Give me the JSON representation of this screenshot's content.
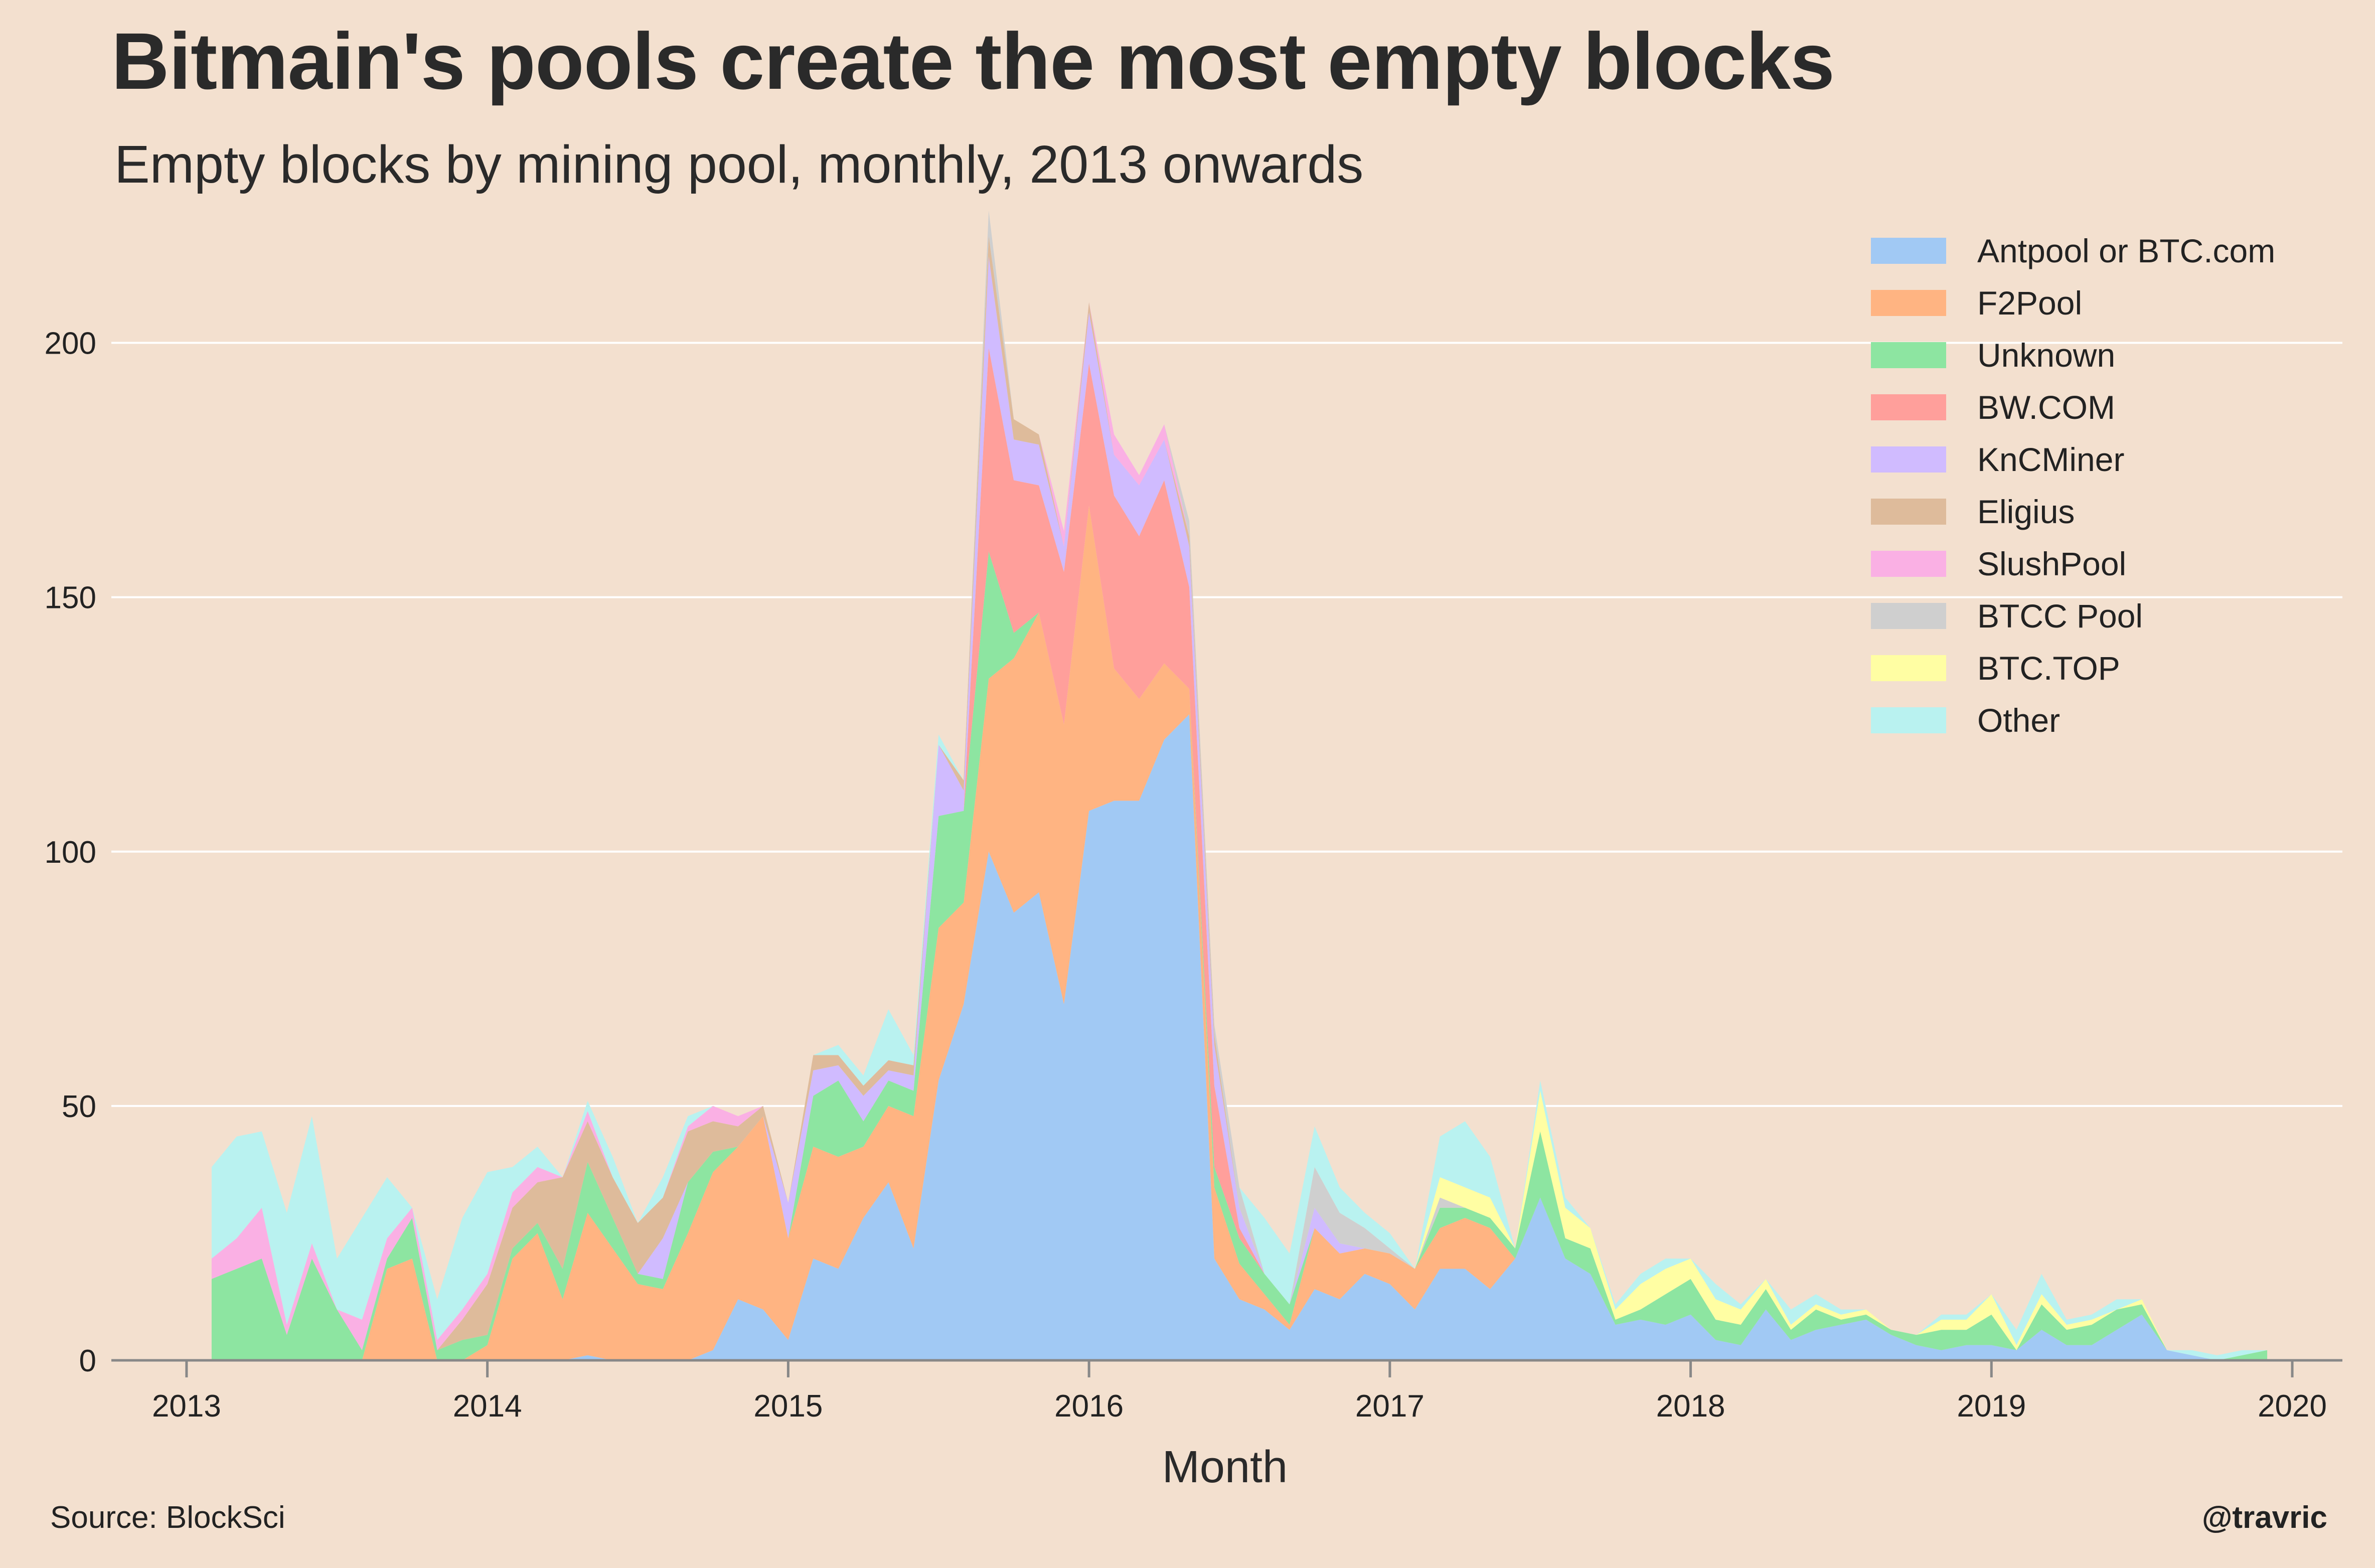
{
  "title": "Bitmain's pools create the most empty blocks",
  "subtitle": "Empty blocks by mining pool, monthly, 2013 onwards",
  "source": "Source: BlockSci",
  "credit": "@travric",
  "colors": {
    "background": "#f3e0cf",
    "grid": "#ffffff",
    "axis": "#888888"
  },
  "chart_data": {
    "type": "area",
    "stacked": true,
    "title": "Bitmain's pools create the most empty blocks",
    "subtitle": "Empty blocks by mining pool, monthly, 2013 onwards",
    "xlabel": "Month",
    "ylabel": "",
    "xlim": [
      "2012-10",
      "2020-03"
    ],
    "ylim": [
      0,
      225
    ],
    "x_ticks": [
      "2013",
      "2014",
      "2015",
      "2016",
      "2017",
      "2018",
      "2019",
      "2020"
    ],
    "y_ticks": [
      0,
      50,
      100,
      150,
      200
    ],
    "grid": "horizontal",
    "legend_position": "top-right",
    "x": [
      "2013-02",
      "2013-03",
      "2013-04",
      "2013-05",
      "2013-06",
      "2013-07",
      "2013-08",
      "2013-09",
      "2013-10",
      "2013-11",
      "2013-12",
      "2014-01",
      "2014-02",
      "2014-03",
      "2014-04",
      "2014-05",
      "2014-06",
      "2014-07",
      "2014-08",
      "2014-09",
      "2014-10",
      "2014-11",
      "2014-12",
      "2015-01",
      "2015-02",
      "2015-03",
      "2015-04",
      "2015-05",
      "2015-06",
      "2015-07",
      "2015-08",
      "2015-09",
      "2015-10",
      "2015-11",
      "2015-12",
      "2016-01",
      "2016-02",
      "2016-03",
      "2016-04",
      "2016-05",
      "2016-06",
      "2016-07",
      "2016-08",
      "2016-09",
      "2016-10",
      "2016-11",
      "2016-12",
      "2017-01",
      "2017-02",
      "2017-03",
      "2017-04",
      "2017-05",
      "2017-06",
      "2017-07",
      "2017-08",
      "2017-09",
      "2017-10",
      "2017-11",
      "2017-12",
      "2018-01",
      "2018-02",
      "2018-03",
      "2018-04",
      "2018-05",
      "2018-06",
      "2018-07",
      "2018-08",
      "2018-09",
      "2018-10",
      "2018-11",
      "2018-12",
      "2019-01",
      "2019-02",
      "2019-03",
      "2019-04",
      "2019-05",
      "2019-06",
      "2019-07",
      "2019-08",
      "2019-09",
      "2019-10",
      "2019-11",
      "2019-12"
    ],
    "series": [
      {
        "name": "Antpool or BTC.com",
        "color": "#a1c9f4",
        "values": [
          0,
          0,
          0,
          0,
          0,
          0,
          0,
          0,
          0,
          0,
          0,
          0,
          0,
          0,
          0,
          1,
          0,
          0,
          0,
          0,
          2,
          12,
          10,
          4,
          20,
          18,
          28,
          35,
          22,
          55,
          70,
          100,
          88,
          92,
          70,
          108,
          110,
          110,
          122,
          127,
          20,
          12,
          10,
          6,
          14,
          12,
          17,
          15,
          10,
          18,
          18,
          14,
          20,
          32,
          20,
          17,
          7,
          8,
          7,
          9,
          4,
          3,
          10,
          4,
          6,
          7,
          8,
          5,
          3,
          2,
          3,
          3,
          2,
          6,
          3,
          3,
          6,
          9,
          2,
          1,
          0,
          0,
          0
        ]
      },
      {
        "name": "F2Pool",
        "color": "#ffb482",
        "values": [
          0,
          0,
          0,
          0,
          0,
          0,
          0,
          18,
          20,
          0,
          0,
          3,
          20,
          25,
          12,
          28,
          22,
          15,
          14,
          25,
          35,
          30,
          38,
          20,
          22,
          22,
          14,
          15,
          26,
          30,
          20,
          34,
          50,
          55,
          55,
          60,
          26,
          20,
          15,
          5,
          14,
          7,
          3,
          1,
          12,
          9,
          5,
          6,
          8,
          8,
          10,
          12,
          0,
          0,
          0,
          0,
          0,
          0,
          0,
          0,
          0,
          0,
          0,
          0,
          0,
          0,
          0,
          0,
          0,
          0,
          0,
          0,
          0,
          0,
          0,
          0,
          0,
          0,
          0,
          0,
          0,
          0,
          0
        ]
      },
      {
        "name": "Unknown",
        "color": "#8de5a1",
        "values": [
          16,
          18,
          20,
          5,
          20,
          10,
          2,
          2,
          8,
          2,
          4,
          2,
          2,
          2,
          6,
          10,
          6,
          2,
          2,
          10,
          4,
          0,
          0,
          0,
          10,
          15,
          5,
          5,
          5,
          22,
          18,
          25,
          5,
          0,
          0,
          0,
          0,
          0,
          0,
          0,
          4,
          5,
          4,
          4,
          0,
          0,
          0,
          0,
          0,
          4,
          2,
          2,
          2,
          13,
          4,
          5,
          1,
          2,
          6,
          7,
          4,
          4,
          4,
          2,
          4,
          1,
          1,
          1,
          2,
          4,
          3,
          6,
          0,
          5,
          3,
          4,
          4,
          2,
          0,
          0,
          0,
          1,
          2
        ]
      },
      {
        "name": "BW.COM",
        "color": "#ff9f9b",
        "values": [
          0,
          0,
          0,
          0,
          0,
          0,
          0,
          0,
          0,
          0,
          0,
          0,
          0,
          0,
          0,
          0,
          0,
          0,
          0,
          0,
          0,
          0,
          0,
          0,
          0,
          0,
          0,
          0,
          0,
          0,
          0,
          40,
          30,
          25,
          30,
          28,
          34,
          32,
          36,
          20,
          16,
          2,
          0,
          0,
          0,
          0,
          0,
          0,
          0,
          0,
          0,
          0,
          0,
          0,
          0,
          0,
          0,
          0,
          0,
          0,
          0,
          0,
          0,
          0,
          0,
          0,
          0,
          0,
          0,
          0,
          0,
          0,
          0,
          0,
          0,
          0,
          0,
          0,
          0,
          0,
          0,
          0,
          0
        ]
      },
      {
        "name": "KnCMiner",
        "color": "#d0bbff",
        "values": [
          0,
          0,
          0,
          0,
          0,
          0,
          0,
          0,
          0,
          0,
          0,
          0,
          0,
          0,
          0,
          0,
          0,
          0,
          8,
          0,
          0,
          0,
          0,
          7,
          5,
          3,
          5,
          2,
          3,
          14,
          4,
          18,
          8,
          8,
          5,
          10,
          8,
          10,
          8,
          8,
          8,
          4,
          0,
          0,
          4,
          2,
          0,
          0,
          0,
          0,
          0,
          0,
          0,
          0,
          0,
          0,
          0,
          0,
          0,
          0,
          0,
          0,
          0,
          0,
          0,
          0,
          0,
          0,
          0,
          0,
          0,
          0,
          0,
          0,
          0,
          0,
          0,
          0,
          0,
          0,
          0,
          0,
          0
        ]
      },
      {
        "name": "Eligius",
        "color": "#debb9b",
        "values": [
          0,
          0,
          0,
          0,
          0,
          0,
          0,
          0,
          0,
          0,
          4,
          10,
          8,
          8,
          18,
          8,
          8,
          10,
          8,
          10,
          6,
          4,
          2,
          0,
          3,
          2,
          2,
          2,
          2,
          0,
          2,
          4,
          4,
          2,
          0,
          2,
          0,
          0,
          0,
          2,
          2,
          0,
          0,
          0,
          0,
          0,
          0,
          0,
          0,
          0,
          0,
          0,
          0,
          0,
          0,
          0,
          0,
          0,
          0,
          0,
          0,
          0,
          0,
          0,
          0,
          0,
          0,
          0,
          0,
          0,
          0,
          0,
          0,
          0,
          0,
          0,
          0,
          0,
          0,
          0,
          0,
          0,
          0
        ]
      },
      {
        "name": "SlushPool",
        "color": "#fab0e4",
        "values": [
          4,
          6,
          10,
          2,
          3,
          0,
          6,
          4,
          2,
          2,
          2,
          2,
          3,
          3,
          0,
          2,
          0,
          0,
          0,
          1,
          3,
          2,
          0,
          0,
          0,
          0,
          0,
          0,
          0,
          0,
          0,
          0,
          0,
          0,
          3,
          0,
          4,
          2,
          3,
          0,
          0,
          0,
          0,
          0,
          0,
          0,
          0,
          0,
          0,
          0,
          0,
          0,
          0,
          0,
          0,
          0,
          0,
          0,
          0,
          0,
          0,
          0,
          0,
          0,
          0,
          0,
          0,
          0,
          0,
          0,
          0,
          0,
          0,
          0,
          0,
          0,
          0,
          0,
          0,
          0,
          0,
          0,
          0
        ]
      },
      {
        "name": "BTCC Pool",
        "color": "#cfcfcf",
        "values": [
          0,
          0,
          0,
          0,
          0,
          0,
          0,
          0,
          0,
          0,
          0,
          0,
          0,
          0,
          0,
          0,
          0,
          0,
          0,
          0,
          0,
          0,
          0,
          0,
          0,
          0,
          0,
          0,
          0,
          0,
          0,
          5,
          0,
          0,
          0,
          0,
          0,
          0,
          0,
          3,
          2,
          4,
          0,
          0,
          8,
          6,
          4,
          1,
          0,
          2,
          0,
          0,
          0,
          0,
          0,
          0,
          0,
          0,
          0,
          0,
          0,
          0,
          0,
          0,
          0,
          0,
          0,
          0,
          0,
          0,
          0,
          0,
          0,
          0,
          0,
          0,
          0,
          0,
          0,
          0,
          0,
          0,
          0
        ]
      },
      {
        "name": "BTC.TOP",
        "color": "#fffea3",
        "values": [
          0,
          0,
          0,
          0,
          0,
          0,
          0,
          0,
          0,
          0,
          0,
          0,
          0,
          0,
          0,
          0,
          0,
          0,
          0,
          0,
          0,
          0,
          0,
          0,
          0,
          0,
          0,
          0,
          0,
          0,
          0,
          0,
          0,
          0,
          0,
          0,
          0,
          0,
          0,
          0,
          0,
          0,
          0,
          0,
          0,
          0,
          0,
          0,
          0,
          4,
          4,
          4,
          0,
          8,
          6,
          4,
          2,
          5,
          5,
          4,
          4,
          3,
          2,
          1,
          1,
          1,
          1,
          0,
          0,
          2,
          2,
          4,
          1,
          2,
          1,
          1,
          0,
          1,
          0,
          0,
          0,
          0,
          0
        ]
      },
      {
        "name": "Other",
        "color": "#b9f2f0",
        "values": [
          18,
          20,
          15,
          22,
          25,
          10,
          20,
          12,
          0,
          8,
          18,
          20,
          5,
          4,
          0,
          2,
          4,
          0,
          4,
          2,
          0,
          0,
          0,
          0,
          0,
          2,
          2,
          10,
          2,
          2,
          0,
          0,
          0,
          0,
          0,
          0,
          0,
          0,
          0,
          0,
          0,
          0,
          11,
          10,
          8,
          5,
          3,
          3,
          0,
          8,
          13,
          8,
          0,
          2,
          2,
          0,
          1,
          2,
          2,
          0,
          3,
          1,
          0,
          3,
          2,
          1,
          0,
          0,
          0,
          1,
          1,
          0,
          3,
          4,
          1,
          1,
          2,
          0,
          0,
          1,
          1,
          1,
          0
        ]
      }
    ]
  }
}
